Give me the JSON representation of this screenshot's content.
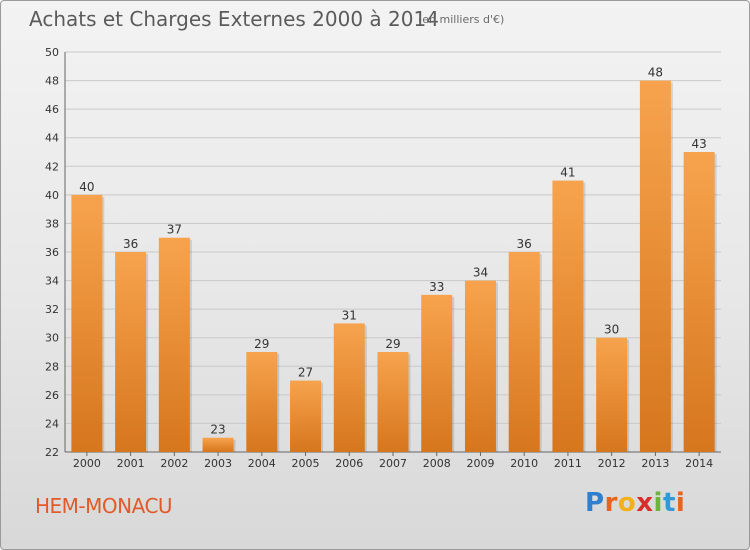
{
  "header": {
    "title": "Achats et Charges Externes 2000 à 2014",
    "subtitle": "(en milliers d'€)"
  },
  "footer": {
    "commune": "HEM-MONACU",
    "logo_letters": [
      "P",
      "r",
      "o",
      "x",
      "i",
      "t",
      "i"
    ],
    "logo_colors": [
      "#2f7fcf",
      "#e8641e",
      "#f2b01e",
      "#d7302a",
      "#6cb33f",
      "#2f9bd6",
      "#e8641e"
    ]
  },
  "colors": {
    "bar_light": "#f7a34e",
    "bar_dark": "#d6761d",
    "accent_text": "#e25a2a"
  },
  "chart_data": {
    "type": "bar",
    "title": "Achats et Charges Externes 2000 à 2014",
    "subtitle": "(en milliers d'€)",
    "categories": [
      "2000",
      "2001",
      "2002",
      "2003",
      "2004",
      "2005",
      "2006",
      "2007",
      "2008",
      "2009",
      "2010",
      "2011",
      "2012",
      "2013",
      "2014"
    ],
    "values": [
      40,
      36,
      37,
      23,
      29,
      27,
      31,
      29,
      33,
      34,
      36,
      41,
      30,
      48,
      43
    ],
    "ylim": [
      22,
      50
    ],
    "yticks": [
      22,
      24,
      26,
      28,
      30,
      32,
      34,
      36,
      38,
      40,
      42,
      44,
      46,
      48,
      50
    ],
    "grid": true,
    "xlabel": "",
    "ylabel": ""
  }
}
